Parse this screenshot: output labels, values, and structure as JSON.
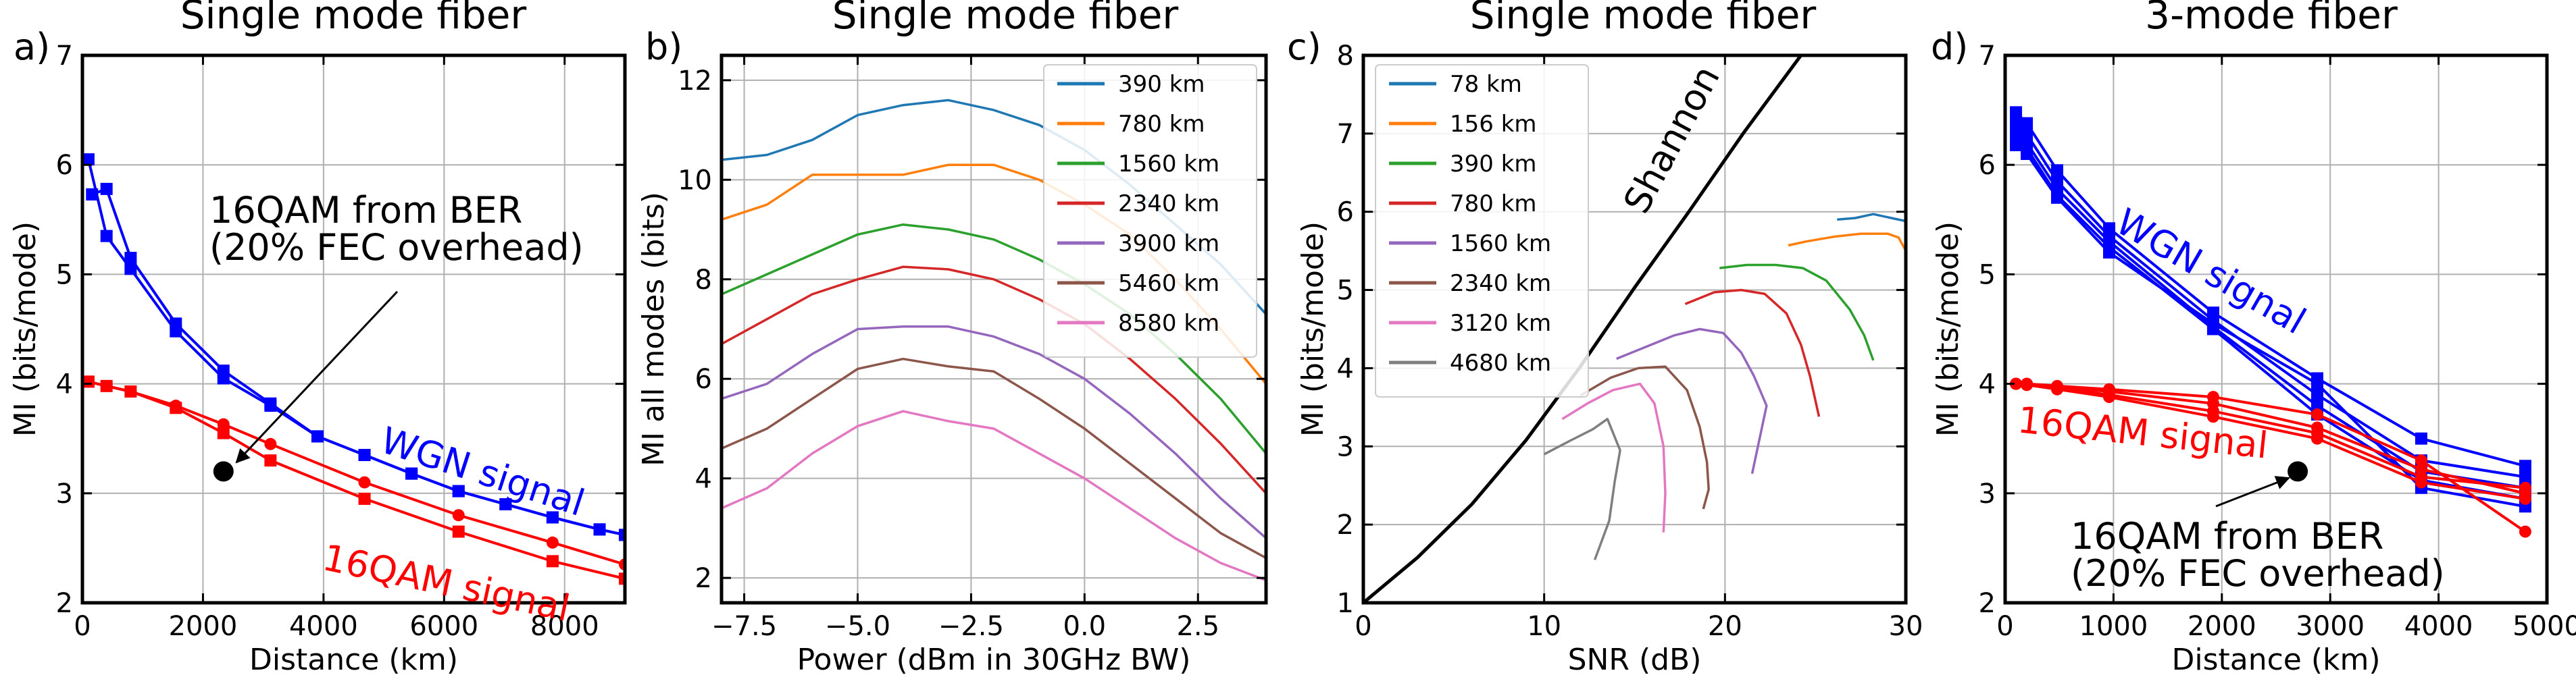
{
  "chart_data": [
    {
      "label": "a)",
      "type": "line",
      "title": "Single mode fiber",
      "xlabel": "Distance (km)",
      "ylabel": "MI (bits/mode)",
      "xlim": [
        0,
        9000
      ],
      "ylim": [
        2,
        7
      ],
      "xticks": [
        0,
        2000,
        4000,
        6000,
        8000
      ],
      "xtick_labels": [
        "0",
        "2000",
        "4000",
        "6000",
        "8000"
      ],
      "yticks": [
        2,
        3,
        4,
        5,
        6,
        7
      ],
      "ytick_labels": [
        "2",
        "3",
        "4",
        "5",
        "6",
        "7"
      ],
      "grid": true,
      "series": [
        {
          "name": "WGN signal",
          "color": "#0000ff",
          "marker": "square",
          "x": [
            100,
            400,
            800,
            1550,
            2340,
            3120,
            3900,
            4680,
            5460,
            6240,
            7020,
            7800,
            8580,
            9000
          ],
          "y": [
            6.05,
            5.35,
            5.05,
            4.48,
            4.05,
            3.8,
            3.52,
            3.35,
            3.18,
            3.02,
            2.9,
            2.78,
            2.67,
            2.62
          ]
        },
        {
          "name": "WGN signal",
          "color": "#0000ff",
          "marker": "square",
          "x": [
            160,
            400,
            800,
            1550,
            2340,
            3120,
            3900,
            4680,
            5460,
            6240,
            7020,
            7800,
            8580,
            9000
          ],
          "y": [
            5.73,
            5.78,
            5.15,
            4.55,
            4.12,
            3.82,
            3.52,
            3.35,
            3.18,
            3.02,
            2.9,
            2.78,
            2.67,
            2.62
          ]
        },
        {
          "name": "16QAM signal",
          "color": "#ff0000",
          "marker": "circle",
          "x": [
            100,
            400,
            800,
            1550,
            2340,
            3120,
            4680,
            6240,
            7800,
            9000
          ],
          "y": [
            4.02,
            3.98,
            3.93,
            3.8,
            3.63,
            3.45,
            3.1,
            2.8,
            2.55,
            2.35
          ]
        },
        {
          "name": "16QAM signal",
          "color": "#ff0000",
          "marker": "square",
          "x": [
            100,
            400,
            800,
            1550,
            2340,
            3120,
            4680,
            6240,
            7800,
            9000
          ],
          "y": [
            4.02,
            3.98,
            3.93,
            3.78,
            3.55,
            3.3,
            2.95,
            2.65,
            2.38,
            2.22
          ]
        }
      ],
      "annotations": [
        {
          "id": "ber-point",
          "text": "",
          "x": 2340,
          "y": 3.2,
          "color": "#000000"
        },
        {
          "id": "wgn-label",
          "text": "WGN signal",
          "color": "#0000ff"
        },
        {
          "id": "qam-label",
          "text": "16QAM signal",
          "color": "#ff0000"
        },
        {
          "id": "ber-label",
          "text": "16QAM from BER\n(20% FEC overhead)",
          "color": "#000000"
        }
      ]
    },
    {
      "label": "b)",
      "type": "line",
      "title": "Single mode fiber",
      "xlabel": "Power (dBm in 30GHz BW)",
      "ylabel": "MI all modes (bits)",
      "xlim": [
        -8,
        4
      ],
      "ylim": [
        1.5,
        12.5
      ],
      "xticks": [
        -7.5,
        -5,
        -2.5,
        0,
        2.5
      ],
      "xtick_labels": [
        "−7.5",
        "−5.0",
        "−2.5",
        "0.0",
        "2.5"
      ],
      "yticks": [
        2,
        4,
        6,
        8,
        10,
        12
      ],
      "ytick_labels": [
        "2",
        "4",
        "6",
        "8",
        "10",
        "12"
      ],
      "grid": true,
      "legend": "top-right",
      "x": [
        -8,
        -7,
        -6,
        -5,
        -4,
        -3,
        -2,
        -1,
        0,
        1,
        2,
        3,
        4
      ],
      "series": [
        {
          "name": "390 km",
          "color": "#1f77b4",
          "y": [
            10.4,
            10.5,
            10.8,
            11.3,
            11.5,
            11.6,
            11.4,
            11.1,
            10.6,
            9.9,
            9.1,
            8.3,
            7.3
          ]
        },
        {
          "name": "780 km",
          "color": "#ff7f0e",
          "y": [
            9.2,
            9.5,
            10.1,
            10.1,
            10.1,
            10.3,
            10.3,
            10.0,
            9.5,
            8.9,
            8.0,
            7.0,
            5.9
          ]
        },
        {
          "name": "1560 km",
          "color": "#2ca02c",
          "y": [
            7.7,
            8.1,
            8.5,
            8.9,
            9.1,
            9.0,
            8.8,
            8.4,
            7.9,
            7.3,
            6.5,
            5.6,
            4.5
          ]
        },
        {
          "name": "2340 km",
          "color": "#d62728",
          "y": [
            6.7,
            7.2,
            7.7,
            8.0,
            8.25,
            8.2,
            8.0,
            7.6,
            7.1,
            6.4,
            5.6,
            4.7,
            3.7
          ]
        },
        {
          "name": "3900 km",
          "color": "#9467bd",
          "y": [
            5.6,
            5.9,
            6.5,
            7.0,
            7.05,
            7.05,
            6.85,
            6.5,
            6.0,
            5.3,
            4.5,
            3.6,
            2.8
          ]
        },
        {
          "name": "5460 km",
          "color": "#8c564b",
          "y": [
            4.6,
            5.0,
            5.6,
            6.2,
            6.4,
            6.25,
            6.15,
            5.6,
            5.0,
            4.3,
            3.6,
            2.9,
            2.4
          ]
        },
        {
          "name": "8580 km",
          "color": "#e377c2",
          "y": [
            3.4,
            3.8,
            4.5,
            5.05,
            5.35,
            5.15,
            5.0,
            4.5,
            4.0,
            3.4,
            2.8,
            2.3,
            1.95
          ]
        }
      ]
    },
    {
      "label": "c)",
      "type": "line",
      "title": "Single mode fiber",
      "xlabel": "SNR (dB)",
      "ylabel": "MI (bits/mode)",
      "xlim": [
        0,
        30
      ],
      "ylim": [
        1,
        8
      ],
      "xticks": [
        0,
        10,
        20,
        30
      ],
      "xtick_labels": [
        "0",
        "10",
        "20",
        "30"
      ],
      "yticks": [
        1,
        2,
        3,
        4,
        5,
        6,
        7,
        8
      ],
      "ytick_labels": [
        "1",
        "2",
        "3",
        "4",
        "5",
        "6",
        "7",
        "8"
      ],
      "grid": true,
      "legend": "top-left",
      "series": [
        {
          "name": "78 km",
          "color": "#1f77b4",
          "x": [
            26.2,
            27.2,
            28.2,
            29.2,
            30
          ],
          "y": [
            5.9,
            5.92,
            5.97,
            5.92,
            5.88
          ]
        },
        {
          "name": "156 km",
          "color": "#ff7f0e",
          "x": [
            23.5,
            24.5,
            26.0,
            27.5,
            29.0,
            29.6,
            30
          ],
          "y": [
            5.57,
            5.62,
            5.68,
            5.72,
            5.72,
            5.67,
            5.5
          ]
        },
        {
          "name": "390 km",
          "color": "#2ca02c",
          "x": [
            19.7,
            21.2,
            22.8,
            24.3,
            25.6,
            26.9,
            27.7,
            28.2
          ],
          "y": [
            5.28,
            5.32,
            5.32,
            5.28,
            5.12,
            4.75,
            4.42,
            4.1
          ]
        },
        {
          "name": "780 km",
          "color": "#d62728",
          "x": [
            17.8,
            19.4,
            20.9,
            22.2,
            23.4,
            24.2,
            24.7,
            25.2
          ],
          "y": [
            4.82,
            4.97,
            5.0,
            4.95,
            4.7,
            4.3,
            3.9,
            3.38
          ]
        },
        {
          "name": "1560 km",
          "color": "#9467bd",
          "x": [
            14.0,
            15.6,
            17.2,
            18.6,
            19.9,
            20.9,
            21.6,
            22.3,
            21.5
          ],
          "y": [
            4.12,
            4.27,
            4.42,
            4.5,
            4.45,
            4.2,
            3.9,
            3.52,
            2.65
          ]
        },
        {
          "name": "2340 km",
          "color": "#8c564b",
          "x": [
            12.0,
            13.7,
            15.2,
            16.7,
            17.9,
            18.6,
            19.0,
            19.1,
            18.8
          ],
          "y": [
            3.65,
            3.88,
            4.0,
            4.02,
            3.72,
            3.25,
            2.8,
            2.45,
            2.2
          ]
        },
        {
          "name": "3120 km",
          "color": "#e377c2",
          "x": [
            11.0,
            12.4,
            13.8,
            15.3,
            16.1,
            16.6,
            16.7,
            16.6
          ],
          "y": [
            3.35,
            3.55,
            3.72,
            3.8,
            3.55,
            3.0,
            2.4,
            1.9
          ]
        },
        {
          "name": "4680 km",
          "color": "#7f7f7f",
          "x": [
            10.0,
            11.5,
            12.7,
            13.5,
            14.2,
            13.9,
            13.6,
            12.8
          ],
          "y": [
            2.9,
            3.08,
            3.22,
            3.35,
            2.95,
            2.55,
            2.05,
            1.55
          ]
        },
        {
          "name": "Shannon",
          "color": "#000000",
          "x": [
            0,
            3,
            6,
            9,
            12,
            15,
            18,
            21,
            24.2
          ],
          "y": [
            1.0,
            1.58,
            2.26,
            3.08,
            4.02,
            5.03,
            6.0,
            7.0,
            8.0
          ]
        }
      ],
      "annotations": [
        {
          "id": "shannon-label",
          "text": "Shannon",
          "color": "#000000"
        }
      ]
    },
    {
      "label": "d)",
      "type": "line",
      "title": "3-mode fiber",
      "xlabel": "Distance (km)",
      "ylabel": "MI (bits/mode)",
      "xlim": [
        0,
        5000
      ],
      "ylim": [
        2,
        7
      ],
      "xticks": [
        0,
        1000,
        2000,
        3000,
        4000,
        5000
      ],
      "xtick_labels": [
        "0",
        "1000",
        "2000",
        "3000",
        "4000",
        "5000"
      ],
      "yticks": [
        2,
        3,
        4,
        5,
        6,
        7
      ],
      "ytick_labels": [
        "2",
        "3",
        "4",
        "5",
        "6",
        "7"
      ],
      "grid": true,
      "series": [
        {
          "name": "WGN signal",
          "color": "#0000ff",
          "marker": "square",
          "x": [
            100,
            200,
            480,
            960,
            1920,
            2880,
            3840,
            4800
          ],
          "y": [
            6.48,
            6.38,
            5.95,
            5.42,
            4.65,
            4.05,
            3.5,
            3.25
          ]
        },
        {
          "name": "WGN signal",
          "color": "#0000ff",
          "marker": "square",
          "x": [
            100,
            200,
            480,
            960,
            1920,
            2880,
            3840,
            4800
          ],
          "y": [
            6.38,
            6.28,
            5.85,
            5.35,
            4.58,
            3.9,
            3.3,
            3.15
          ]
        },
        {
          "name": "WGN signal",
          "color": "#0000ff",
          "marker": "square",
          "x": [
            100,
            200,
            480,
            960,
            1920,
            2880,
            3840,
            4800
          ],
          "y": [
            6.3,
            6.2,
            5.78,
            5.3,
            4.52,
            3.8,
            3.2,
            3.05
          ]
        },
        {
          "name": "WGN signal",
          "color": "#0000ff",
          "marker": "square",
          "x": [
            100,
            200,
            480,
            960,
            1920,
            2880,
            3840,
            4800
          ],
          "y": [
            6.22,
            6.15,
            5.72,
            5.25,
            4.5,
            3.72,
            3.12,
            2.95
          ]
        },
        {
          "name": "WGN signal",
          "color": "#0000ff",
          "marker": "square",
          "x": [
            100,
            200,
            480,
            960,
            1920,
            2880,
            3840,
            4800
          ],
          "y": [
            6.18,
            6.1,
            5.7,
            5.2,
            4.55,
            4.0,
            3.05,
            2.88
          ]
        },
        {
          "name": "16QAM signal",
          "color": "#ff0000",
          "marker": "circle",
          "x": [
            100,
            200,
            480,
            960,
            1920,
            2880,
            3840,
            4800
          ],
          "y": [
            4.0,
            4.0,
            3.98,
            3.95,
            3.88,
            3.72,
            3.3,
            2.65
          ]
        },
        {
          "name": "16QAM signal",
          "color": "#ff0000",
          "marker": "circle",
          "x": [
            100,
            200,
            480,
            960,
            1920,
            2880,
            3840,
            4800
          ],
          "y": [
            4.0,
            4.0,
            3.97,
            3.93,
            3.82,
            3.6,
            3.22,
            3.0
          ]
        },
        {
          "name": "16QAM signal",
          "color": "#ff0000",
          "marker": "circle",
          "x": [
            100,
            200,
            480,
            960,
            1920,
            2880,
            3840,
            4800
          ],
          "y": [
            4.0,
            3.99,
            3.96,
            3.9,
            3.75,
            3.55,
            3.15,
            3.05
          ]
        },
        {
          "name": "16QAM signal",
          "color": "#ff0000",
          "marker": "circle",
          "x": [
            100,
            200,
            480,
            960,
            1920,
            2880,
            3840,
            4800
          ],
          "y": [
            4.0,
            3.99,
            3.95,
            3.88,
            3.7,
            3.5,
            3.1,
            2.95
          ]
        }
      ],
      "annotations": [
        {
          "id": "ber-point",
          "text": "",
          "x": 2700,
          "y": 3.2,
          "color": "#000000"
        },
        {
          "id": "wgn-label",
          "text": "WGN signal",
          "color": "#0000ff"
        },
        {
          "id": "qam-label",
          "text": "16QAM signal",
          "color": "#ff0000"
        },
        {
          "id": "ber-label",
          "text": "16QAM from BER\n(20% FEC overhead)",
          "color": "#000000"
        }
      ]
    }
  ]
}
